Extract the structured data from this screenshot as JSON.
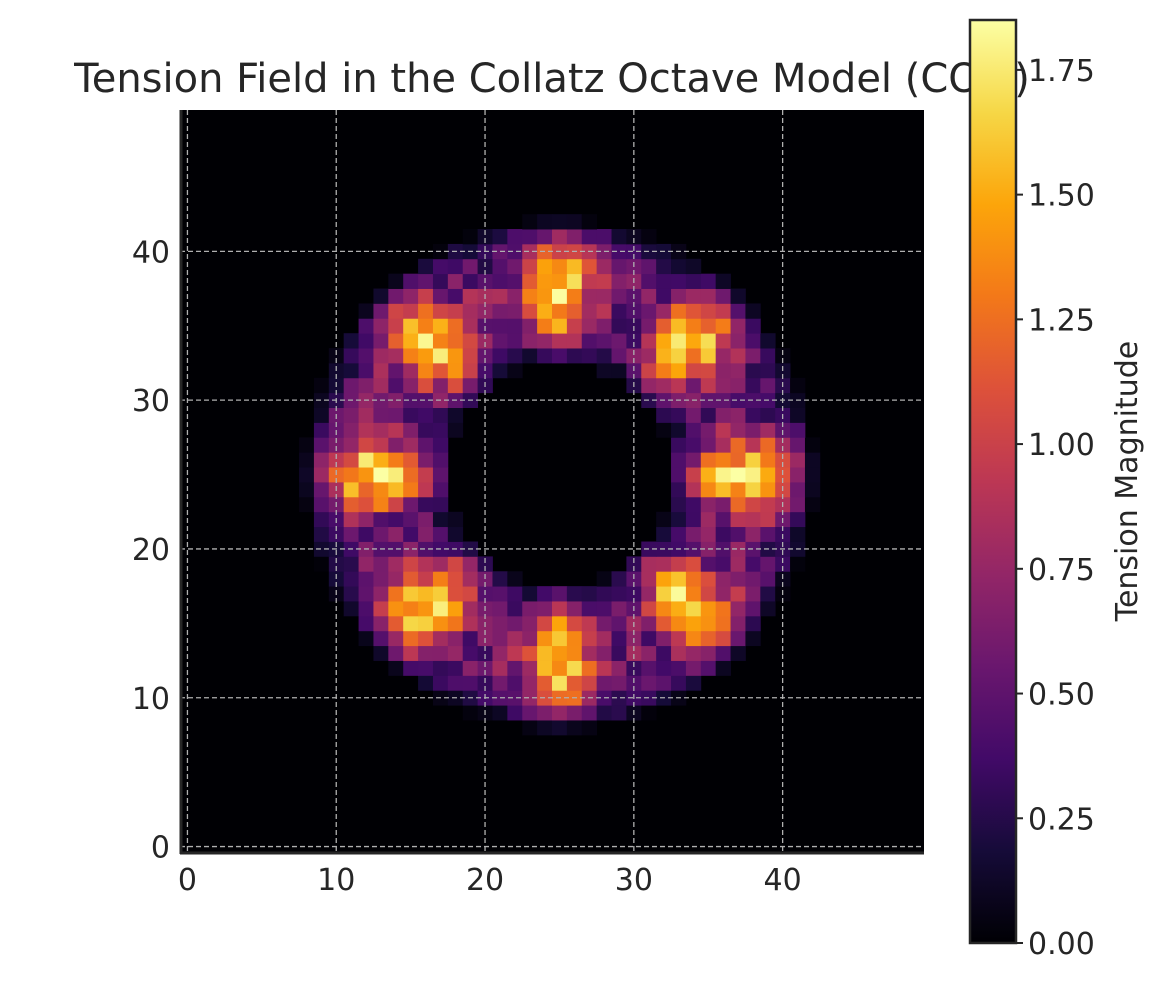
{
  "chart_data": {
    "type": "heatmap",
    "title": "Tension Field in the Collatz Octave Model (COM)",
    "xlabel": "",
    "ylabel": "",
    "grid_size": 50,
    "xlim": [
      -0.5,
      49.5
    ],
    "ylim": [
      -0.5,
      49.5
    ],
    "origin": "lower",
    "x_ticks": [
      0,
      10,
      20,
      30,
      40
    ],
    "y_ticks": [
      0,
      10,
      20,
      30,
      40
    ],
    "x_tick_labels": [
      "0",
      "10",
      "20",
      "30",
      "40"
    ],
    "y_tick_labels": [
      "0",
      "10",
      "20",
      "30",
      "40"
    ],
    "grid": true,
    "colormap": "inferno",
    "colorbar": {
      "label": "Tension Magnitude",
      "range": [
        0.0,
        1.85
      ],
      "ticks": [
        0.0,
        0.25,
        0.5,
        0.75,
        1.0,
        1.25,
        1.5,
        1.75
      ],
      "tick_labels": [
        "0.00",
        "0.25",
        "0.50",
        "0.75",
        "1.00",
        "1.25",
        "1.50",
        "1.75"
      ]
    },
    "field": {
      "description_of_structure": "annulus centred at (25,25)",
      "center": [
        25,
        25
      ],
      "inner_radius": 8.5,
      "outer_radius": 16,
      "octave_modes": 8,
      "peak_value": 1.85
    }
  }
}
